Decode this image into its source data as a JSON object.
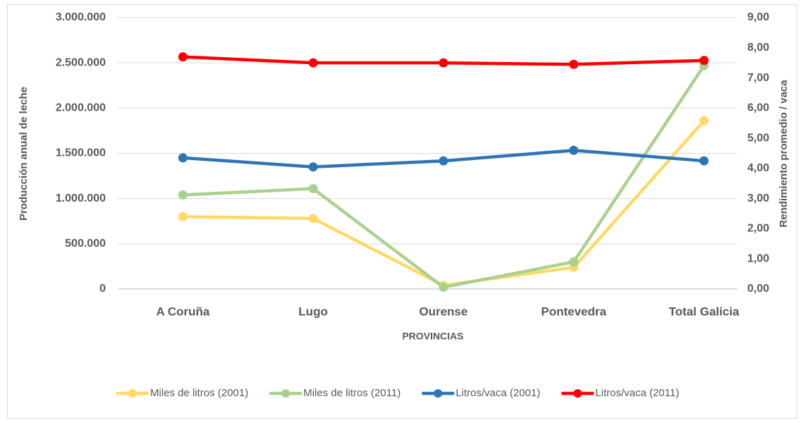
{
  "chart_data": {
    "type": "line",
    "categories": [
      "A Coruña",
      "Lugo",
      "Ourense",
      "Pontevedra",
      "Total Galicia"
    ],
    "xlabel": "PROVINCIAS",
    "ylabel": "Producción anual de leche",
    "y2label": "Rendimiento promedio / vaca",
    "ylim": [
      0,
      3000000
    ],
    "yticks": [
      0,
      {
        "value": 500000,
        "label": "500.000"
      },
      {
        "value": 1000000,
        "label": "1.000.000"
      },
      {
        "value": 1500000,
        "label": "1.500.000"
      },
      {
        "value": 2000000,
        "label": "2.000.000"
      },
      {
        "value": 2500000,
        "label": "2.500.000"
      },
      {
        "value": 3000000,
        "label": "3.000.000"
      }
    ],
    "y2lim": [
      0,
      9
    ],
    "y2ticks": [
      {
        "value": 0,
        "label": "0,00"
      },
      {
        "value": 1,
        "label": "1,00"
      },
      {
        "value": 2,
        "label": "2,00"
      },
      {
        "value": 3,
        "label": "3,00"
      },
      {
        "value": 4,
        "label": "4,00"
      },
      {
        "value": 5,
        "label": "5,00"
      },
      {
        "value": 6,
        "label": "6,00"
      },
      {
        "value": 7,
        "label": "7,00"
      },
      {
        "value": 8,
        "label": "8,00"
      },
      {
        "value": 9,
        "label": "9,00"
      }
    ],
    "grid": true,
    "legend": "bottom",
    "series": [
      {
        "name": "Miles de litros (2001)",
        "color": "#ffd966",
        "values": [
          800000,
          780000,
          40000,
          240000,
          1860000
        ]
      },
      {
        "name": "Miles de litros (2011)",
        "color": "#a9d18e",
        "values": [
          1040000,
          1110000,
          20000,
          300000,
          2470000
        ]
      },
      {
        "name": "Litros/vaca (2001)",
        "color": "#2e75b6",
        "axis": "y2",
        "values": [
          4.35,
          4.05,
          4.25,
          4.6,
          4.25
        ]
      },
      {
        "name": "Litros/vaca (2011)",
        "color": "#ff0000",
        "axis": "y2",
        "values": [
          7.7,
          7.5,
          7.5,
          7.45,
          7.58
        ]
      }
    ]
  }
}
